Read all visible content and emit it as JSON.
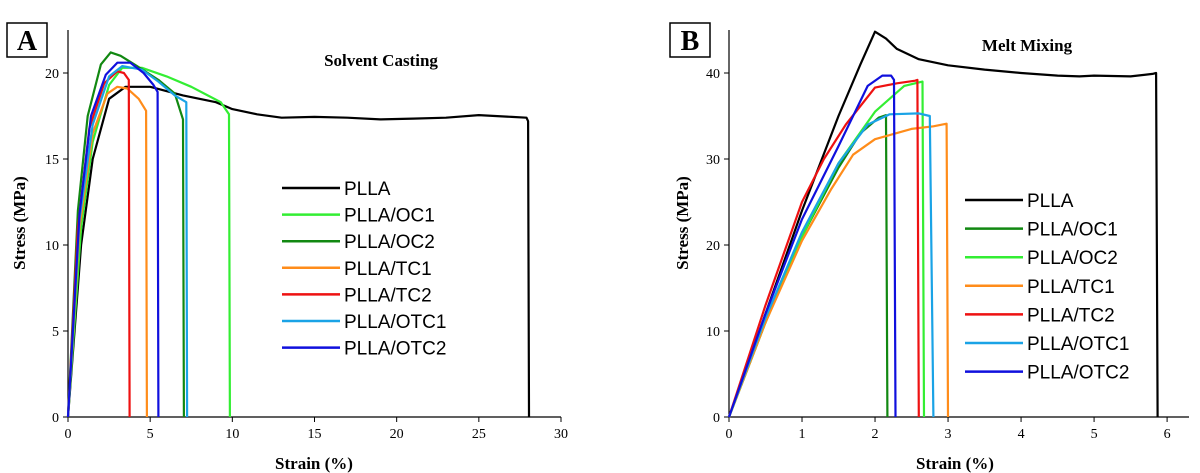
{
  "panels": [
    {
      "letter": "A",
      "chart_data": {
        "type": "line",
        "title": "Solvent Casting",
        "xlabel": "Strain (%)",
        "ylabel": "Stress (MPa)",
        "xlim": [
          0,
          30
        ],
        "ylim": [
          0,
          22.5
        ],
        "xticks": [
          0,
          5,
          10,
          15,
          20,
          25,
          30
        ],
        "yticks": [
          0,
          5,
          10,
          15,
          20
        ],
        "legend_position": "center-right",
        "series": [
          {
            "name": "PLLA",
            "color": "#000000",
            "points": [
              [
                0,
                0
              ],
              [
                0.8,
                10
              ],
              [
                1.5,
                15
              ],
              [
                2.5,
                18.5
              ],
              [
                3.5,
                19.2
              ],
              [
                5,
                19.2
              ],
              [
                7,
                18.7
              ],
              [
                9,
                18.3
              ],
              [
                10,
                17.9
              ],
              [
                11.5,
                17.6
              ],
              [
                13,
                17.4
              ],
              [
                15,
                17.45
              ],
              [
                17,
                17.4
              ],
              [
                19,
                17.3
              ],
              [
                21,
                17.35
              ],
              [
                23,
                17.4
              ],
              [
                25,
                17.55
              ],
              [
                27,
                17.45
              ],
              [
                27.9,
                17.4
              ],
              [
                28,
                17.2
              ],
              [
                28.05,
                0
              ]
            ]
          },
          {
            "name": "PLLA/OC1",
            "color": "#33ee33",
            "points": [
              [
                0,
                0
              ],
              [
                0.8,
                11
              ],
              [
                1.5,
                16
              ],
              [
                2.5,
                19.3
              ],
              [
                3.3,
                20.3
              ],
              [
                4.5,
                20.3
              ],
              [
                6,
                19.8
              ],
              [
                7.5,
                19.2
              ],
              [
                8.5,
                18.7
              ],
              [
                9.3,
                18.3
              ],
              [
                9.8,
                17.6
              ],
              [
                9.85,
                0
              ]
            ]
          },
          {
            "name": "PLLA/OC2",
            "color": "#118811",
            "points": [
              [
                0,
                0
              ],
              [
                0.6,
                12
              ],
              [
                1.2,
                17.5
              ],
              [
                2,
                20.5
              ],
              [
                2.6,
                21.2
              ],
              [
                3.2,
                21.0
              ],
              [
                4.2,
                20.4
              ],
              [
                5.5,
                19.6
              ],
              [
                6.5,
                18.8
              ],
              [
                7,
                17.3
              ],
              [
                7.05,
                0
              ]
            ]
          },
          {
            "name": "PLLA/TC1",
            "color": "#ff8c1a",
            "points": [
              [
                0,
                0
              ],
              [
                0.7,
                11
              ],
              [
                1.5,
                16.5
              ],
              [
                2.4,
                18.8
              ],
              [
                3,
                19.2
              ],
              [
                3.6,
                19.1
              ],
              [
                4.3,
                18.5
              ],
              [
                4.75,
                17.8
              ],
              [
                4.8,
                0
              ]
            ]
          },
          {
            "name": "PLLA/TC2",
            "color": "#ee1111",
            "points": [
              [
                0,
                0
              ],
              [
                0.6,
                11
              ],
              [
                1.3,
                16.8
              ],
              [
                2.2,
                19.4
              ],
              [
                3,
                20.1
              ],
              [
                3.4,
                20.0
              ],
              [
                3.7,
                19.6
              ],
              [
                3.75,
                0
              ]
            ]
          },
          {
            "name": "PLLA/OTC1",
            "color": "#1aa3e6",
            "points": [
              [
                0,
                0
              ],
              [
                0.7,
                11.5
              ],
              [
                1.5,
                17
              ],
              [
                2.5,
                19.8
              ],
              [
                3.3,
                20.4
              ],
              [
                4.5,
                20.2
              ],
              [
                5.5,
                19.5
              ],
              [
                6.5,
                18.7
              ],
              [
                7.2,
                18.3
              ],
              [
                7.25,
                0
              ]
            ]
          },
          {
            "name": "PLLA/OTC2",
            "color": "#1010dd",
            "points": [
              [
                0,
                0
              ],
              [
                0.7,
                11.8
              ],
              [
                1.4,
                17.5
              ],
              [
                2.3,
                19.9
              ],
              [
                3,
                20.6
              ],
              [
                3.8,
                20.6
              ],
              [
                4.6,
                20.0
              ],
              [
                5.2,
                19.3
              ],
              [
                5.45,
                18.9
              ],
              [
                5.5,
                0
              ]
            ]
          }
        ]
      }
    },
    {
      "letter": "B",
      "chart_data": {
        "type": "line",
        "title": "Melt Mixing",
        "xlabel": "Strain (%)",
        "ylabel": "Stress (MPa)",
        "xlim": [
          0,
          6.3
        ],
        "ylim": [
          0,
          45
        ],
        "xticks": [
          0,
          1,
          2,
          3,
          4,
          5,
          6
        ],
        "yticks": [
          0,
          10,
          20,
          30,
          40
        ],
        "legend_position": "center-right",
        "series": [
          {
            "name": "PLLA",
            "color": "#000000",
            "points": [
              [
                0,
                0
              ],
              [
                0.5,
                12
              ],
              [
                1,
                24
              ],
              [
                1.5,
                35
              ],
              [
                1.8,
                41
              ],
              [
                2,
                44.8
              ],
              [
                2.15,
                44.0
              ],
              [
                2.3,
                42.8
              ],
              [
                2.6,
                41.6
              ],
              [
                3,
                40.9
              ],
              [
                3.5,
                40.4
              ],
              [
                4,
                40.0
              ],
              [
                4.5,
                39.7
              ],
              [
                4.8,
                39.6
              ],
              [
                5,
                39.7
              ],
              [
                5.5,
                39.6
              ],
              [
                5.8,
                39.9
              ],
              [
                5.85,
                40.0
              ],
              [
                5.87,
                0
              ]
            ]
          },
          {
            "name": "PLLA/OC1",
            "color": "#118811",
            "points": [
              [
                0,
                0
              ],
              [
                0.5,
                11
              ],
              [
                1,
                21
              ],
              [
                1.5,
                29
              ],
              [
                1.8,
                33
              ],
              [
                2.05,
                34.8
              ],
              [
                2.15,
                35.1
              ],
              [
                2.17,
                0
              ]
            ]
          },
          {
            "name": "PLLA/OC2",
            "color": "#33ee33",
            "points": [
              [
                0,
                0
              ],
              [
                0.5,
                11
              ],
              [
                1,
                21
              ],
              [
                1.5,
                29.5
              ],
              [
                2,
                35.5
              ],
              [
                2.4,
                38.5
              ],
              [
                2.65,
                39
              ],
              [
                2.67,
                0
              ]
            ]
          },
          {
            "name": "PLLA/TC1",
            "color": "#ff8c1a",
            "points": [
              [
                0,
                0
              ],
              [
                0.5,
                11
              ],
              [
                1,
                20.5
              ],
              [
                1.4,
                26.5
              ],
              [
                1.7,
                30.5
              ],
              [
                2,
                32.3
              ],
              [
                2.5,
                33.5
              ],
              [
                2.8,
                33.8
              ],
              [
                2.98,
                34.1
              ],
              [
                3,
                0
              ]
            ]
          },
          {
            "name": "PLLA/TC2",
            "color": "#ee1111",
            "points": [
              [
                0,
                0
              ],
              [
                0.5,
                13
              ],
              [
                1,
                25
              ],
              [
                1.3,
                30
              ],
              [
                1.6,
                34
              ],
              [
                2,
                38.3
              ],
              [
                2.3,
                38.8
              ],
              [
                2.55,
                39.1
              ],
              [
                2.58,
                39.2
              ],
              [
                2.6,
                0
              ]
            ]
          },
          {
            "name": "PLLA/OTC1",
            "color": "#1aa3e6",
            "points": [
              [
                0,
                0
              ],
              [
                0.5,
                11.5
              ],
              [
                1,
                21.5
              ],
              [
                1.5,
                29.5
              ],
              [
                1.9,
                34
              ],
              [
                2.2,
                35.2
              ],
              [
                2.6,
                35.3
              ],
              [
                2.75,
                35
              ],
              [
                2.8,
                0
              ]
            ]
          },
          {
            "name": "PLLA/OTC2",
            "color": "#1010dd",
            "points": [
              [
                0,
                0
              ],
              [
                0.5,
                12
              ],
              [
                1,
                23
              ],
              [
                1.5,
                31.5
              ],
              [
                1.9,
                38.5
              ],
              [
                2.1,
                39.7
              ],
              [
                2.22,
                39.7
              ],
              [
                2.26,
                39.2
              ],
              [
                2.28,
                0
              ]
            ]
          }
        ]
      }
    }
  ]
}
